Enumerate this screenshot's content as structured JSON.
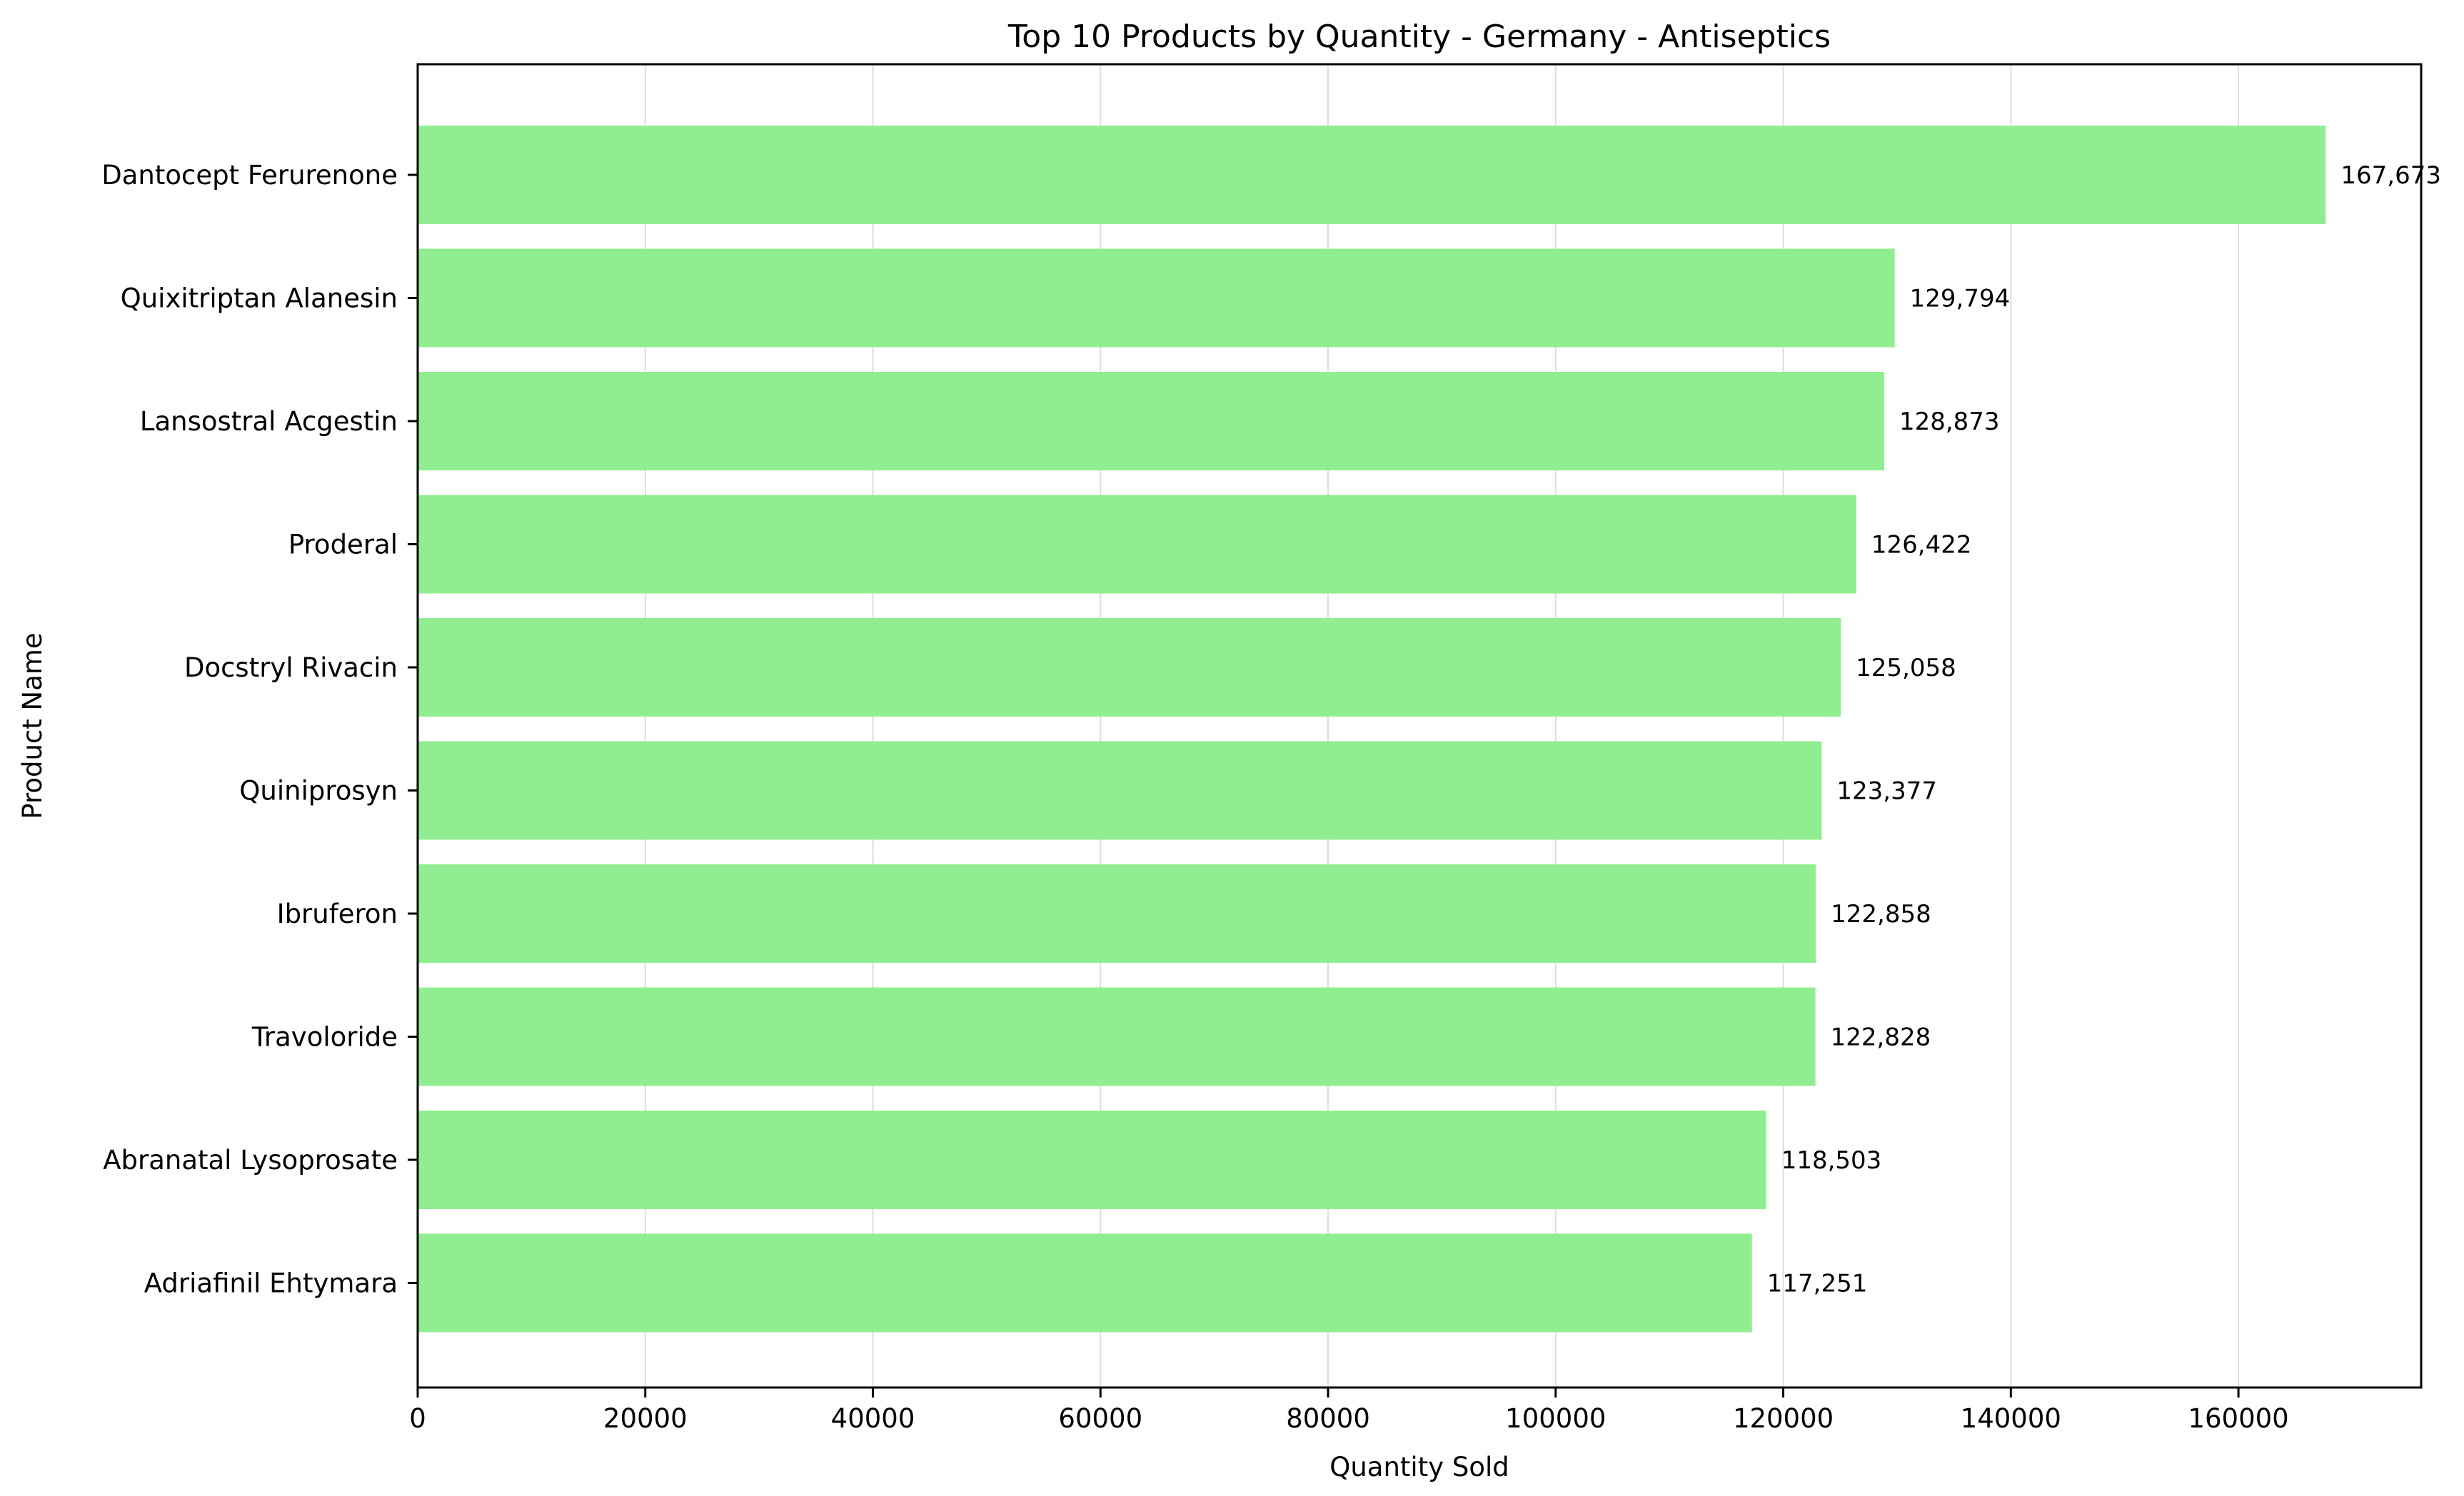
{
  "chart_data": {
    "type": "bar",
    "orientation": "horizontal",
    "title": "Top 10 Products by Quantity - Germany - Antiseptics",
    "xlabel": "Quantity Sold",
    "ylabel": "Product Name",
    "categories": [
      "Dantocept Ferurenone",
      "Quixitriptan Alanesin",
      "Lansostral Acgestin",
      "Proderal",
      "Docstryl Rivacin",
      "Quiniprosyn",
      "Ibruferon",
      "Travoloride",
      "Abranatal Lysoprosate",
      "Adriafinil Ehtymara"
    ],
    "values": [
      167673,
      129794,
      128873,
      126422,
      125058,
      123377,
      122858,
      122828,
      118503,
      117251
    ],
    "value_labels": [
      "167,673",
      "129,794",
      "128,873",
      "126,422",
      "125,058",
      "123,377",
      "122,858",
      "122,828",
      "118,503",
      "117,251"
    ],
    "xticks": [
      0,
      20000,
      40000,
      60000,
      80000,
      100000,
      120000,
      140000,
      160000
    ],
    "xlim": [
      0,
      176057
    ],
    "grid": "x",
    "legend": "none",
    "bar_color": "#90ee90"
  }
}
